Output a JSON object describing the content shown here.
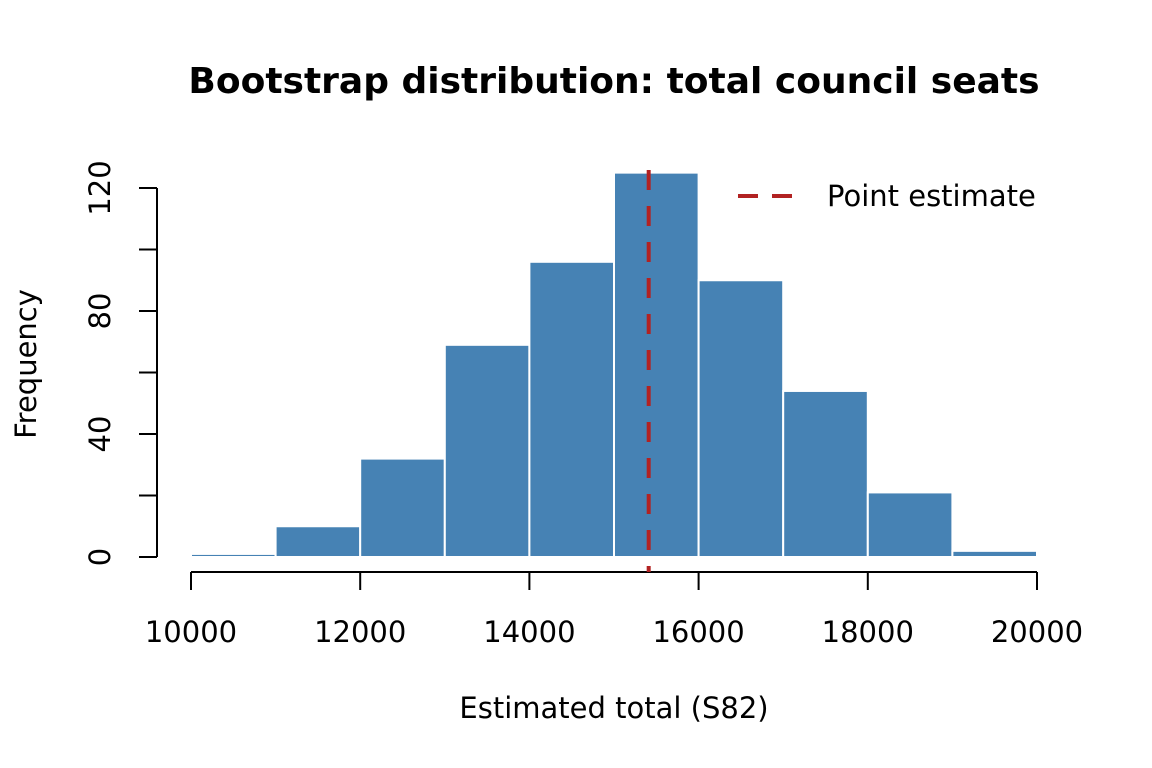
{
  "chart_data": {
    "type": "bar",
    "subtype": "histogram",
    "title": "Bootstrap distribution: total council seats",
    "xlabel": "Estimated total (S82)",
    "ylabel": "Frequency",
    "bin_edges": [
      10000,
      11000,
      12000,
      13000,
      14000,
      15000,
      16000,
      17000,
      18000,
      19000,
      20000
    ],
    "values": [
      1,
      10,
      32,
      69,
      96,
      125,
      90,
      54,
      21,
      2
    ],
    "xlim": [
      10000,
      20000
    ],
    "ylim": [
      0,
      125
    ],
    "x_ticks": [
      10000,
      12000,
      14000,
      16000,
      18000,
      20000
    ],
    "x_tick_labels": [
      "10000",
      "12000",
      "14000",
      "16000",
      "18000",
      "20000"
    ],
    "y_ticks": [
      0,
      20,
      40,
      60,
      80,
      100,
      120
    ],
    "y_tick_labels": [
      "0",
      "",
      "40",
      "",
      "80",
      "",
      "120"
    ],
    "point_estimate": 15410,
    "legend": {
      "placement": "top-right",
      "entries": [
        {
          "label": "Point estimate",
          "style": "dashed"
        }
      ]
    },
    "grid": false,
    "colors": {
      "bar_fill": "#4682B4",
      "bar_border": "#FFFFFF",
      "point_estimate_line": "#B22222"
    }
  }
}
